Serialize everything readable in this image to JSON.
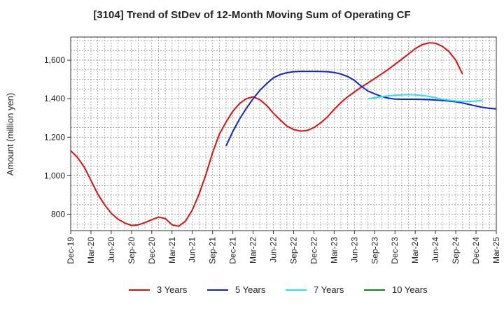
{
  "chart_data": {
    "type": "line",
    "title": "[3104]  Trend of StDev of 12-Month Moving Sum of Operating CF",
    "xlabel": "",
    "ylabel": "Amount (million yen)",
    "ylim": [
      715,
      1720
    ],
    "yticks": [
      800,
      1000,
      1200,
      1400,
      1600
    ],
    "ytick_labels": [
      "800",
      "1,000",
      "1,200",
      "1,400",
      "1,600"
    ],
    "grid": true,
    "legend_position": "bottom",
    "x_ticks": [
      "Dec-19",
      "Mar-20",
      "Jun-20",
      "Sep-20",
      "Dec-20",
      "Mar-21",
      "Jun-21",
      "Sep-21",
      "Dec-21",
      "Mar-22",
      "Jun-22",
      "Sep-22",
      "Dec-22",
      "Mar-23",
      "Jun-23",
      "Sep-23",
      "Dec-23",
      "Mar-24",
      "Jun-24",
      "Sep-24",
      "Dec-24",
      "Mar-25"
    ],
    "series": [
      {
        "name": "3 Years",
        "color": "#dd1111",
        "start": "Dec-19",
        "values": [
          1130,
          1095,
          1045,
          975,
          905,
          850,
          805,
          775,
          755,
          742,
          745,
          757,
          772,
          785,
          778,
          745,
          738,
          765,
          822,
          905,
          1005,
          1120,
          1215,
          1280,
          1335,
          1375,
          1400,
          1410,
          1395,
          1365,
          1325,
          1290,
          1258,
          1240,
          1232,
          1235,
          1250,
          1275,
          1305,
          1345,
          1380,
          1410,
          1435,
          1460,
          1482,
          1505,
          1528,
          1552,
          1578,
          1605,
          1632,
          1660,
          1680,
          1690,
          1688,
          1672,
          1645,
          1600,
          1528
        ]
      },
      {
        "name": "5 Years",
        "color": "#1122cc",
        "start": "Nov-21",
        "values": [
          1155,
          1230,
          1295,
          1350,
          1400,
          1443,
          1478,
          1508,
          1525,
          1535,
          1540,
          1542,
          1542,
          1542,
          1541,
          1540,
          1536,
          1528,
          1515,
          1495,
          1465,
          1440,
          1425,
          1412,
          1403,
          1398,
          1397,
          1397,
          1397,
          1396,
          1395,
          1393,
          1391,
          1388,
          1384,
          1378,
          1370,
          1362,
          1355,
          1350,
          1347
        ]
      },
      {
        "name": "7 Years",
        "color": "#22e5f0",
        "start": "Aug-23",
        "values": [
          1400,
          1405,
          1410,
          1415,
          1418,
          1420,
          1421,
          1420,
          1417,
          1412,
          1405,
          1398,
          1392,
          1388,
          1386,
          1386,
          1388,
          1392
        ]
      },
      {
        "name": "10 Years",
        "color": "#118811",
        "start": "",
        "values": []
      }
    ]
  }
}
